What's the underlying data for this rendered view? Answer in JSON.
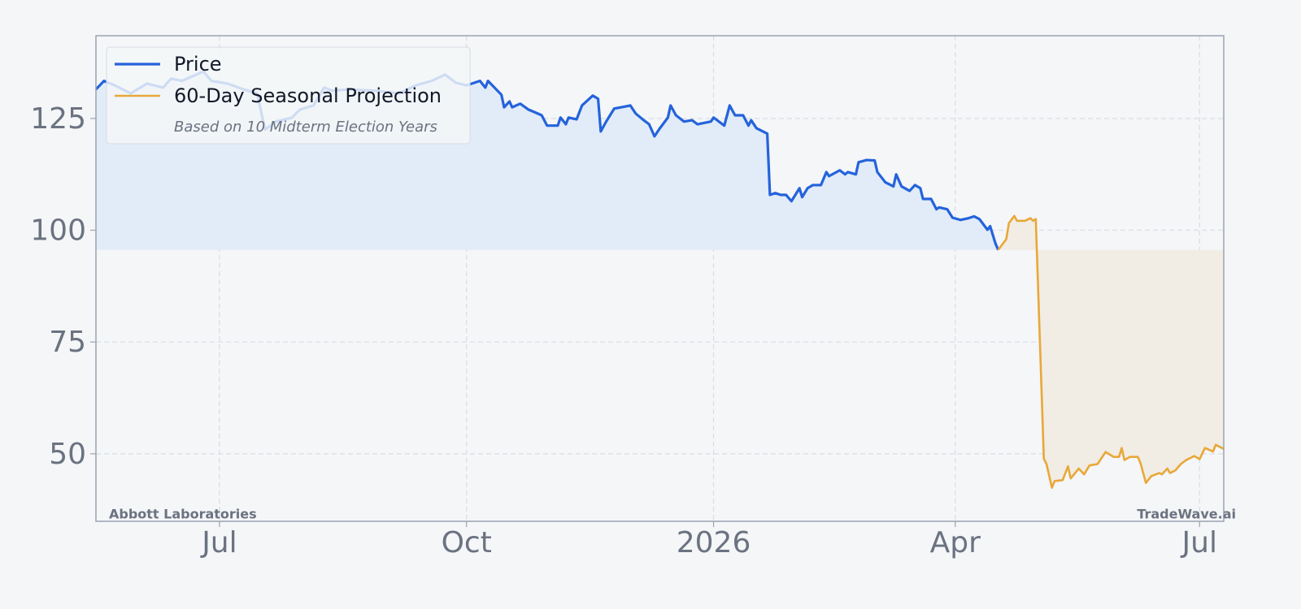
{
  "chart_data": {
    "type": "line",
    "series": [
      {
        "name": "Price",
        "color": "#2563db",
        "fill": "#e1ecf8",
        "x": [
          0,
          3,
          7,
          13,
          19,
          25,
          28,
          32,
          40,
          43,
          49,
          55,
          60,
          63,
          67,
          73,
          76,
          81,
          85,
          88,
          94,
          104,
          113,
          119,
          125,
          130,
          134,
          138,
          143,
          145,
          146,
          151,
          152,
          154,
          155,
          158,
          161,
          163,
          166,
          168,
          172,
          173,
          175,
          176,
          179,
          181,
          185,
          187,
          188,
          190,
          193,
          199,
          201,
          204,
          206,
          208,
          210,
          213,
          214,
          216,
          219,
          222,
          224,
          229,
          230,
          234,
          236,
          238,
          241,
          243,
          244,
          246,
          250,
          251,
          253,
          255,
          257,
          259,
          262,
          263,
          265,
          267,
          270,
          272,
          273,
          277,
          279,
          280,
          283,
          284,
          287,
          290,
          291,
          294,
          297,
          298,
          300,
          303,
          305,
          307,
          308,
          311,
          313,
          314,
          317,
          319,
          322,
          325,
          327,
          329,
          332,
          333,
          335,
          336
        ],
        "values": [
          131.5,
          133.4,
          132.4,
          130.6,
          132.8,
          131.9,
          133.9,
          133.4,
          135.5,
          133.4,
          132.8,
          131.5,
          130.6,
          122.5,
          124.3,
          125.2,
          127.0,
          127.9,
          131.9,
          131.2,
          131.5,
          131.2,
          130.6,
          132.4,
          133.4,
          134.8,
          133.0,
          132.4,
          133.4,
          131.9,
          133.4,
          130.3,
          127.5,
          128.8,
          127.5,
          128.3,
          127.0,
          126.5,
          125.7,
          123.4,
          123.4,
          125.2,
          123.7,
          125.2,
          124.8,
          127.9,
          130.1,
          129.4,
          122.1,
          124.3,
          127.2,
          127.9,
          126.1,
          124.6,
          123.7,
          121.0,
          122.8,
          125.2,
          127.9,
          125.7,
          124.3,
          124.6,
          123.7,
          124.3,
          125.2,
          123.4,
          127.9,
          125.7,
          125.7,
          123.4,
          124.6,
          122.8,
          121.6,
          107.9,
          108.3,
          107.9,
          107.9,
          106.5,
          109.4,
          107.4,
          109.4,
          110.1,
          110.1,
          113.0,
          112.1,
          113.4,
          112.5,
          113.0,
          112.5,
          115.2,
          115.7,
          115.6,
          113.0,
          110.7,
          109.8,
          112.5,
          109.8,
          108.8,
          110.1,
          109.4,
          107.0,
          107.0,
          104.7,
          105.1,
          104.7,
          102.8,
          102.3,
          102.7,
          103.1,
          102.5,
          100.1,
          100.9,
          97.0,
          95.6
        ]
      },
      {
        "name": "60-Day Seasonal Projection",
        "color": "#e8a838",
        "fill": "#f1ece4",
        "x": [
          336,
          339,
          340,
          342,
          343,
          346,
          348,
          349,
          350,
          353,
          354,
          356,
          357,
          360,
          362,
          363,
          366,
          368,
          370,
          373,
          376,
          379,
          381,
          382,
          383,
          385,
          388,
          389,
          391,
          393,
          396,
          397,
          399,
          400,
          402,
          404,
          406,
          409,
          411,
          413,
          416,
          417,
          420
        ],
        "values": [
          95.6,
          98.0,
          101.6,
          103.2,
          102.1,
          102.1,
          102.7,
          102.1,
          102.5,
          48.9,
          47.7,
          42.4,
          43.9,
          44.1,
          47.2,
          44.5,
          46.7,
          45.4,
          47.4,
          47.7,
          50.4,
          49.3,
          49.3,
          51.3,
          48.6,
          49.3,
          49.3,
          47.9,
          43.5,
          45.0,
          45.7,
          45.4,
          46.7,
          45.7,
          46.3,
          47.7,
          48.6,
          49.5,
          48.8,
          51.3,
          50.5,
          52.0,
          51.1
        ]
      }
    ],
    "xlim": [
      0,
      420
    ],
    "xticks": [
      {
        "value": 46,
        "label": "Jul"
      },
      {
        "value": 138,
        "label": "Oct"
      },
      {
        "value": 230,
        "label": "2026"
      },
      {
        "value": 320,
        "label": "Apr"
      },
      {
        "value": 411,
        "label": "Jul"
      }
    ],
    "ylim": [
      34.9,
      143.5
    ],
    "yticks": [
      50,
      75,
      100,
      125
    ],
    "grid": true,
    "legend": "upper left",
    "legend_note": "Based on 10 Midterm Election Years",
    "annotations": [
      "Abbott Laboratories",
      "TradeWave.ai"
    ]
  }
}
